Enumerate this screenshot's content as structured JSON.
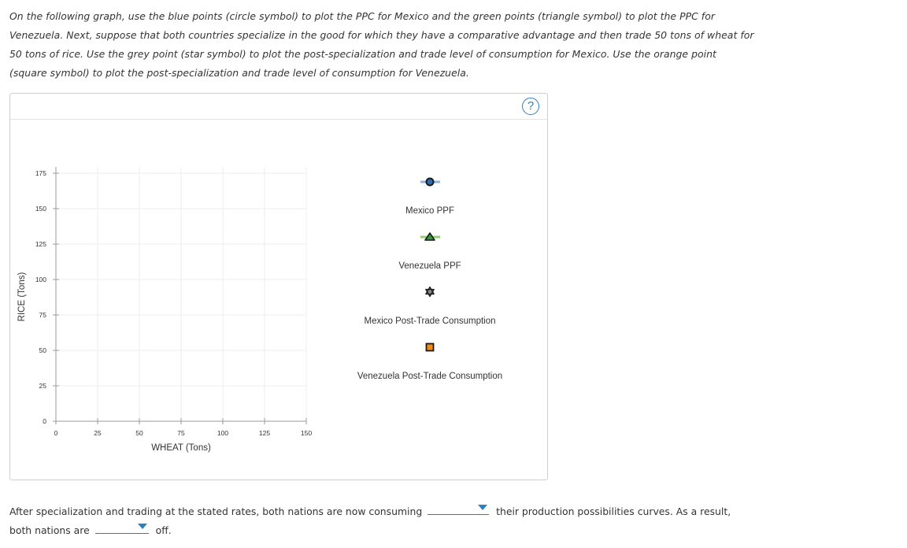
{
  "instructions": {
    "line1": "On the following graph, use the blue points (circle symbol) to plot the PPC for Mexico and the green points (triangle symbol) to plot the PPC for",
    "line2": "Venezuela. Next, suppose that both countries specialize in the good for which they have a comparative advantage and then trade 50 tons of wheat for",
    "line3": "50 tons of rice. Use the grey point (star symbol) to plot the post-specialization and trade level of consumption for Mexico. Use the orange point",
    "line4": "(square symbol) to plot the post-specialization and trade level of consumption for Venezuela."
  },
  "help": {
    "label": "?"
  },
  "chart_data": {
    "type": "scatter",
    "title": "",
    "xlabel": "WHEAT (Tons)",
    "ylabel": "RICE (Tons)",
    "xlim": [
      0,
      150
    ],
    "ylim": [
      0,
      175
    ],
    "x_ticks": [
      0,
      25,
      50,
      75,
      100,
      125,
      150
    ],
    "y_ticks": [
      0,
      25,
      50,
      75,
      100,
      125,
      150,
      175
    ],
    "grid": true,
    "series": [
      {
        "name": "Mexico PPF",
        "symbol": "circle",
        "color": "#2b6cb0",
        "line_color": "#8fb1d6",
        "points": []
      },
      {
        "name": "Venezuela PPF",
        "symbol": "triangle",
        "color": "#2e9a3a",
        "line_color": "#8fcf6f",
        "points": []
      },
      {
        "name": "Mexico Post-Trade Consumption",
        "symbol": "star",
        "color": "#444444",
        "points": []
      },
      {
        "name": "Venezuela Post-Trade Consumption",
        "symbol": "square",
        "color": "#f28c0f",
        "points": []
      }
    ]
  },
  "question": {
    "part1": "After specialization and trading at the stated rates, both nations are now consuming",
    "part2": "their production possibilities curves. As a result,",
    "part3": "both nations are",
    "part4": "off.",
    "dropdown1_value": "",
    "dropdown2_value": ""
  }
}
